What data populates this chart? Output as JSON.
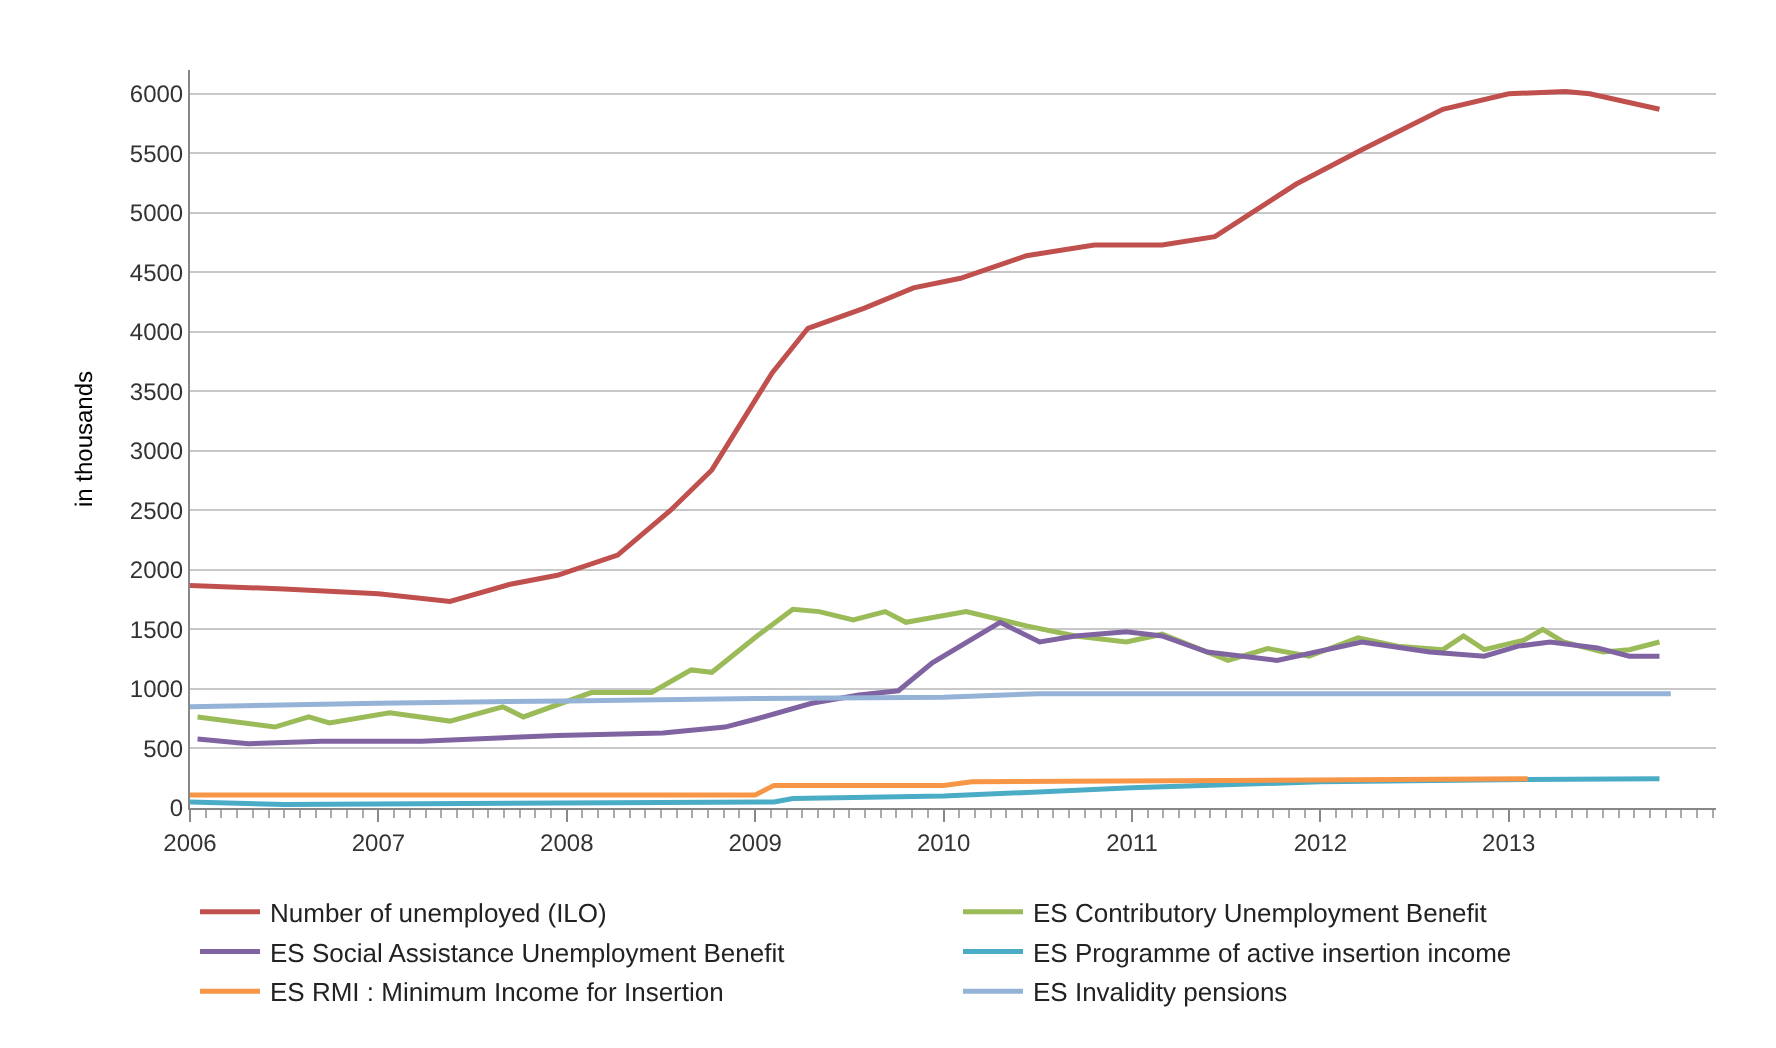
{
  "chart_data": {
    "type": "line",
    "ylabel": "in thousands",
    "xlim": [
      2006,
      2014.1
    ],
    "xticks": [
      2006,
      2007,
      2008,
      2009,
      2010,
      2011,
      2012,
      2013
    ],
    "ylim": [
      0,
      6200
    ],
    "yticks": [
      0,
      500,
      1000,
      1500,
      2000,
      2500,
      3000,
      3500,
      4000,
      4500,
      5000,
      5500,
      6000
    ],
    "grid": "y",
    "legend": "bottom",
    "marker": "none",
    "line_style": "solid",
    "series": [
      {
        "name": "Number of unemployed (ILO)",
        "color": "#c0504d",
        "x": [
          2006.0,
          2006.5,
          2007.0,
          2007.38,
          2007.7,
          2007.95,
          2008.27,
          2008.55,
          2008.77,
          2009.09,
          2009.28,
          2009.58,
          2009.84,
          2010.09,
          2010.44,
          2010.8,
          2011.16,
          2011.44,
          2011.87,
          2012.22,
          2012.65,
          2013.0,
          2013.3,
          2013.43,
          2013.8
        ],
        "values": [
          1870,
          1840,
          1800,
          1735,
          1880,
          1955,
          2125,
          2500,
          2840,
          3655,
          4030,
          4200,
          4370,
          4450,
          4640,
          4730,
          4730,
          4800,
          5240,
          5530,
          5870,
          6000,
          6020,
          6000,
          5870
        ]
      },
      {
        "name": "ES Contributory Unemployment Benefit",
        "color": "#9bbb59",
        "x": [
          2006.04,
          2006.45,
          2006.63,
          2006.74,
          2007.06,
          2007.38,
          2007.66,
          2007.77,
          2008.13,
          2008.45,
          2008.66,
          2008.77,
          2009.01,
          2009.2,
          2009.34,
          2009.52,
          2009.69,
          2009.8,
          2010.12,
          2010.44,
          2010.7,
          2010.97,
          2011.16,
          2011.51,
          2011.72,
          2011.94,
          2012.2,
          2012.41,
          2012.65,
          2012.76,
          2012.87,
          2013.08,
          2013.18,
          2013.29,
          2013.5,
          2013.64,
          2013.8
        ],
        "values": [
          765,
          680,
          765,
          715,
          800,
          730,
          850,
          765,
          970,
          970,
          1160,
          1140,
          1445,
          1670,
          1650,
          1580,
          1650,
          1560,
          1650,
          1530,
          1445,
          1395,
          1460,
          1240,
          1340,
          1275,
          1430,
          1360,
          1330,
          1445,
          1330,
          1410,
          1500,
          1395,
          1310,
          1330,
          1395
        ]
      },
      {
        "name": "ES Social Assistance Unemployment Benefit",
        "color": "#8064a2",
        "x": [
          2006.04,
          2006.31,
          2006.7,
          2007.23,
          2007.95,
          2008.51,
          2008.84,
          2009.01,
          2009.3,
          2009.55,
          2009.76,
          2009.94,
          2010.3,
          2010.51,
          2010.7,
          2010.97,
          2011.16,
          2011.4,
          2011.77,
          2012.22,
          2012.58,
          2012.87,
          2013.05,
          2013.22,
          2013.47,
          2013.64,
          2013.8
        ],
        "values": [
          580,
          540,
          560,
          560,
          610,
          630,
          680,
          750,
          880,
          950,
          985,
          1220,
          1560,
          1395,
          1445,
          1480,
          1445,
          1310,
          1240,
          1395,
          1310,
          1275,
          1360,
          1395,
          1345,
          1275,
          1275
        ]
      },
      {
        "name": "ES Programme of active insertion income",
        "color": "#4bacc6",
        "x": [
          2006.0,
          2006.5,
          2009.1,
          2009.2,
          2010.0,
          2011.0,
          2012.0,
          2013.1,
          2013.8
        ],
        "values": [
          50,
          30,
          50,
          80,
          100,
          170,
          220,
          240,
          245
        ]
      },
      {
        "name": "ES RMI : Minimum Income for Insertion",
        "color": "#f79646",
        "x": [
          2006.0,
          2009.0,
          2009.1,
          2010.0,
          2010.15,
          2013.1
        ],
        "values": [
          110,
          110,
          190,
          190,
          220,
          245
        ]
      },
      {
        "name": "ES Invalidity pensions",
        "color": "#95b3d7",
        "x": [
          2006.0,
          2007.0,
          2008.0,
          2009.0,
          2010.0,
          2010.5,
          2013.86
        ],
        "values": [
          850,
          880,
          900,
          920,
          930,
          960,
          960
        ]
      }
    ]
  }
}
